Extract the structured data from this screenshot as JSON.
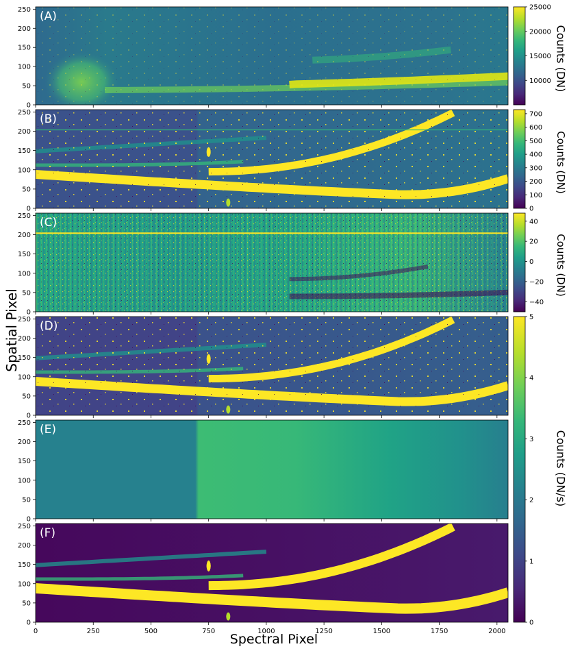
{
  "figure": {
    "y_axis_label": "Spatial Pixel",
    "x_axis_label": "Spectral Pixel",
    "cb_label_top_left": "Counts (DN)",
    "cb_label_b": "Counts (DN)",
    "cb_label_c": "Counts (DN)",
    "cb_label_def": "Counts (DN/s)"
  },
  "colors": {
    "viridis": [
      "#440154",
      "#482878",
      "#3e4989",
      "#31688e",
      "#26828e",
      "#1f9e89",
      "#35b779",
      "#6ece58",
      "#b5de2b",
      "#fde725"
    ]
  },
  "chart_data": [
    {
      "type": "heatmap",
      "panel_label": "(A)",
      "xlim": [
        0,
        2048
      ],
      "ylim": [
        0,
        256
      ],
      "x_ticks": [
        "0",
        "250",
        "500",
        "750",
        "1000",
        "1250",
        "1500",
        "1750",
        "2000"
      ],
      "y_ticks": [
        "0",
        "50",
        "100",
        "150",
        "200",
        "250"
      ],
      "x_tick_values": [
        0,
        250,
        500,
        750,
        1000,
        1250,
        1500,
        1750,
        2000
      ],
      "y_tick_values": [
        0,
        50,
        100,
        150,
        200,
        250
      ],
      "colorbar": {
        "label": "Counts (DN)",
        "range": [
          5000,
          25000
        ],
        "ticks": [
          "10000",
          "15000",
          "20000",
          "25000"
        ],
        "tick_values": [
          10000,
          15000,
          20000,
          25000
        ]
      }
    },
    {
      "type": "heatmap",
      "panel_label": "(B)",
      "xlim": [
        0,
        2048
      ],
      "ylim": [
        0,
        256
      ],
      "colorbar": {
        "label": "Counts (DN)",
        "range": [
          0,
          730
        ],
        "ticks": [
          "0",
          "100",
          "200",
          "300",
          "400",
          "500",
          "600",
          "700"
        ],
        "tick_values": [
          0,
          100,
          200,
          300,
          400,
          500,
          600,
          700
        ]
      }
    },
    {
      "type": "heatmap",
      "panel_label": "(C)",
      "xlim": [
        0,
        2048
      ],
      "ylim": [
        0,
        256
      ],
      "colorbar": {
        "label": "Counts (DN)",
        "range": [
          -50,
          48
        ],
        "ticks": [
          "−40",
          "−20",
          "0",
          "20",
          "40"
        ],
        "tick_values": [
          -40,
          -20,
          0,
          20,
          40
        ]
      }
    },
    {
      "type": "heatmap",
      "panel_label": "(D)",
      "xlim": [
        0,
        2048
      ],
      "ylim": [
        0,
        256
      ],
      "colorbar": {
        "label": "Counts (DN/s)",
        "range": [
          0,
          5
        ],
        "ticks": [
          "0",
          "1",
          "2",
          "3",
          "4",
          "5"
        ],
        "tick_values": [
          0,
          1,
          2,
          3,
          4,
          5
        ]
      }
    },
    {
      "type": "heatmap",
      "panel_label": "(E)",
      "xlim": [
        0,
        2048
      ],
      "ylim": [
        0,
        256
      ]
    },
    {
      "type": "heatmap",
      "panel_label": "(F)",
      "xlim": [
        0,
        2048
      ],
      "ylim": [
        0,
        256
      ]
    }
  ]
}
